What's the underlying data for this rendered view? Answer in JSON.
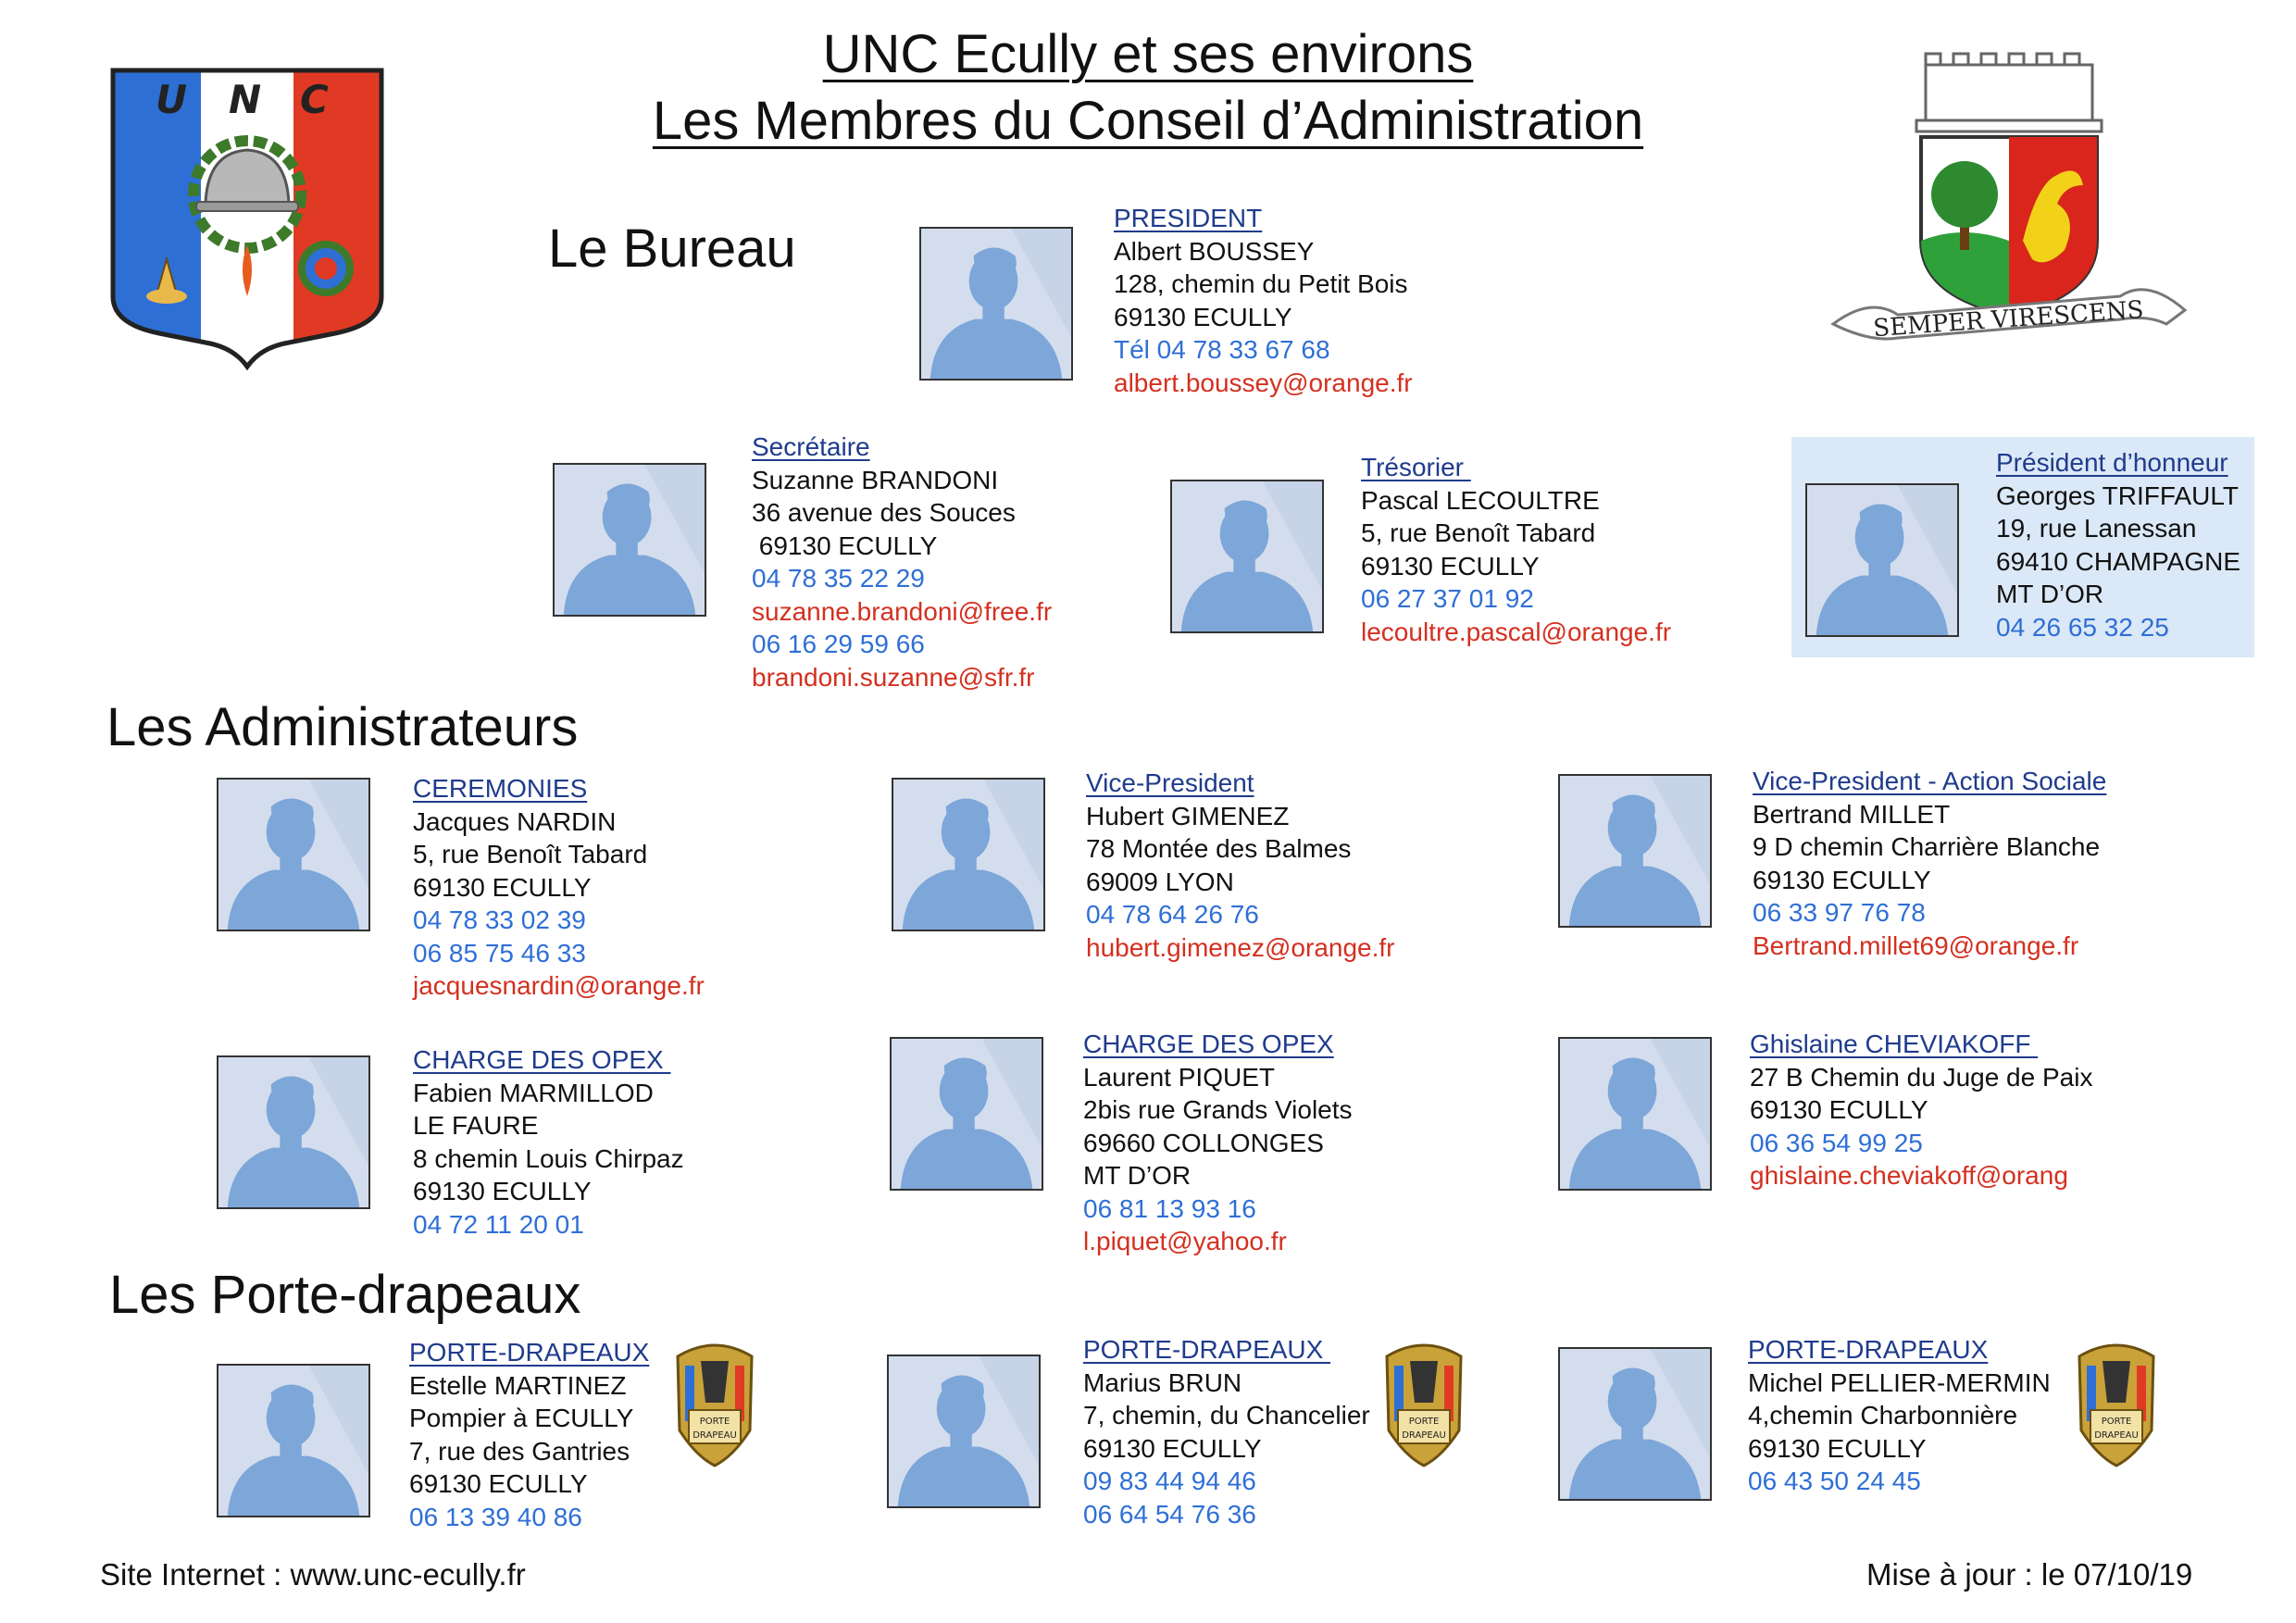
{
  "header": {
    "title_line1": "UNC Ecully et ses environs",
    "title_line2": "Les Membres du Conseil d’Administration",
    "logo_letters": "UNC",
    "crest_motto": "SEMPER VIRESCENS"
  },
  "sections": {
    "bureau": "Le Bureau",
    "administrateurs": "Les Administrateurs",
    "porte_drapeaux": "Les Porte-drapeaux"
  },
  "bureau": {
    "president": {
      "role": "PRESIDENT",
      "lines": [
        "Albert BOUSSEY",
        "128, chemin du Petit Bois",
        "69130 ECULLY"
      ],
      "phones": [
        "Tél 04 78 33 67 68"
      ],
      "emails": [
        "albert.boussey@orange.fr"
      ]
    },
    "secretaire": {
      "role": "Secrétaire",
      "lines": [
        "Suzanne BRANDONI",
        "36 avenue des Souces",
        " 69130 ECULLY"
      ],
      "phones": [
        "04 78 35 22 29"
      ],
      "email1": "suzanne.brandoni@free.fr",
      "phone2": "06 16 29 59 66",
      "email2": "brandoni.suzanne@sfr.fr"
    },
    "tresorier": {
      "role": "Trésorier ",
      "lines": [
        "Pascal LECOULTRE",
        "5, rue Benoît Tabard",
        "69130 ECULLY"
      ],
      "phones": [
        "06 27 37 01 92"
      ],
      "emails": [
        "lecoultre.pascal@orange.fr"
      ]
    },
    "honneur": {
      "role": "Président d’honneur",
      "lines": [
        "Georges TRIFFAULT",
        "19, rue Lanessan",
        "69410 CHAMPAGNE",
        "MT D’OR"
      ],
      "phones": [
        "04 26 65 32 25"
      ],
      "emails": []
    }
  },
  "administrateurs": [
    {
      "role": "CEREMONIES",
      "lines": [
        "Jacques NARDIN",
        "5, rue Benoît Tabard",
        "69130 ECULLY"
      ],
      "phones": [
        "04 78 33 02 39",
        "06 85 75 46 33"
      ],
      "emails": [
        "jacquesnardin@orange.fr"
      ]
    },
    {
      "role": "Vice-President",
      "lines": [
        "Hubert GIMENEZ",
        "78 Montée des Balmes",
        "69009 LYON"
      ],
      "phones": [
        "04 78 64 26 76"
      ],
      "emails": [
        "hubert.gimenez@orange.fr"
      ]
    },
    {
      "role": "Vice-President - Action Sociale",
      "lines": [
        "Bertrand MILLET",
        "9 D chemin Charrière Blanche",
        "69130 ECULLY"
      ],
      "phones": [
        "06 33 97 76 78"
      ],
      "emails": [
        "Bertrand.millet69@orange.fr"
      ]
    },
    {
      "role": "CHARGE DES OPEX ",
      "lines": [
        "Fabien MARMILLOD",
        "LE FAURE",
        "8 chemin Louis Chirpaz",
        "69130 ECULLY"
      ],
      "phones": [
        "04 72 11 20 01"
      ],
      "emails": []
    },
    {
      "role": "CHARGE DES OPEX",
      "lines": [
        "Laurent PIQUET",
        "2bis rue Grands Violets",
        "69660 COLLONGES",
        "MT D’OR"
      ],
      "phones": [
        "06 81 13 93 16"
      ],
      "emails": [
        "l.piquet@yahoo.fr"
      ]
    },
    {
      "role": "Ghislaine CHEVIAKOFF ",
      "lines": [
        "27 B Chemin du Juge de Paix",
        "69130 ECULLY"
      ],
      "phones": [
        "06 36 54 99 25"
      ],
      "emails": [
        "ghislaine.cheviakoff@orang"
      ]
    }
  ],
  "porte_drapeaux": [
    {
      "role": "PORTE-DRAPEAUX",
      "lines": [
        "Estelle MARTINEZ",
        "Pompier à ECULLY",
        "7, rue des Gantries",
        "69130 ECULLY"
      ],
      "phones": [
        "06 13 39 40 86"
      ],
      "emails": []
    },
    {
      "role": "PORTE-DRAPEAUX ",
      "lines": [
        "Marius BRUN",
        "7, chemin, du Chancelier",
        "69130 ECULLY"
      ],
      "phones": [
        "09 83 44 94 46",
        "06 64 54 76 36"
      ],
      "emails": []
    },
    {
      "role": "PORTE-DRAPEAUX",
      "lines": [
        "Michel PELLIER-MERMIN",
        "4,chemin Charbonnière",
        "69130 ECULLY"
      ],
      "phones": [
        "06 43 50 24 45"
      ],
      "emails": []
    }
  ],
  "badge_text": [
    "PORTE",
    "DRAPEAU"
  ],
  "footer": {
    "website": "Site Internet : www.unc-ecully.fr",
    "updated": "Mise à jour : le 07/10/19"
  },
  "colors": {
    "role": "#1f3b8c",
    "phone": "#2f6fd6",
    "email": "#d43020",
    "photo_bg": "#d4dded",
    "silhouette": "#7da6d9",
    "honor_bg": "#dbe8f7"
  }
}
